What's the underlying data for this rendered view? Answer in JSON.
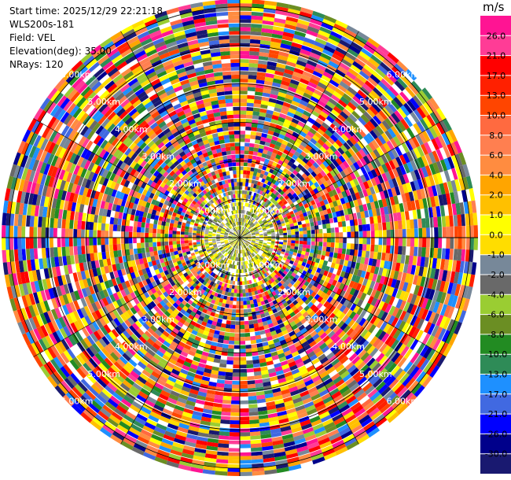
{
  "info": {
    "start_time": "Start time: 2025/12/29 22:21:18",
    "site": "WLS200s-181",
    "field": "Field: VEL",
    "elevation": "Elevation(deg): 35.00",
    "nrays": "NRays: 120"
  },
  "chart_data": {
    "type": "heatmap",
    "projection": "polar",
    "field": "VEL",
    "nrays": 120,
    "range_rings_km": [
      1,
      2,
      3,
      4,
      5,
      6
    ],
    "ring_labels": [
      "1.00km",
      "2.00km",
      "3.00km",
      "4.00km",
      "5.00km",
      "6.00km"
    ],
    "max_range_km": 6.2,
    "ring_label_angles_deg": [
      45,
      135,
      225,
      315
    ],
    "colorbar": {
      "unit": "m/s",
      "labels": [
        "26.0",
        "21.0",
        "17.0",
        "13.0",
        "10.0",
        "8.0",
        "6.0",
        "4.0",
        "2.0",
        "1.0",
        "0.0",
        "-1.0",
        "-2.0",
        "-4.0",
        "-6.0",
        "-8.0",
        "-10.0",
        "-13.0",
        "-17.0",
        "-21.0",
        "-26.0",
        "-30.0"
      ],
      "colors": [
        "#ff1493",
        "#ff3c96",
        "#ff0000",
        "#ff2000",
        "#ff4500",
        "#ff6a40",
        "#ff7f50",
        "#ff8c40",
        "#ffa500",
        "#ffc000",
        "#ffff00",
        "#ffdd00",
        "#778899",
        "#696969",
        "#9acd32",
        "#6b8e23",
        "#228b22",
        "#2e8b57",
        "#1e90ff",
        "#4169e1",
        "#0000ff",
        "#00008b",
        "#191970"
      ]
    },
    "center_region_colors": [
      "#ffff00",
      "#ffdd00",
      "#9acd32",
      "#6b8e23",
      "#808080",
      "#a9a9a9",
      "#ffffff"
    ]
  }
}
